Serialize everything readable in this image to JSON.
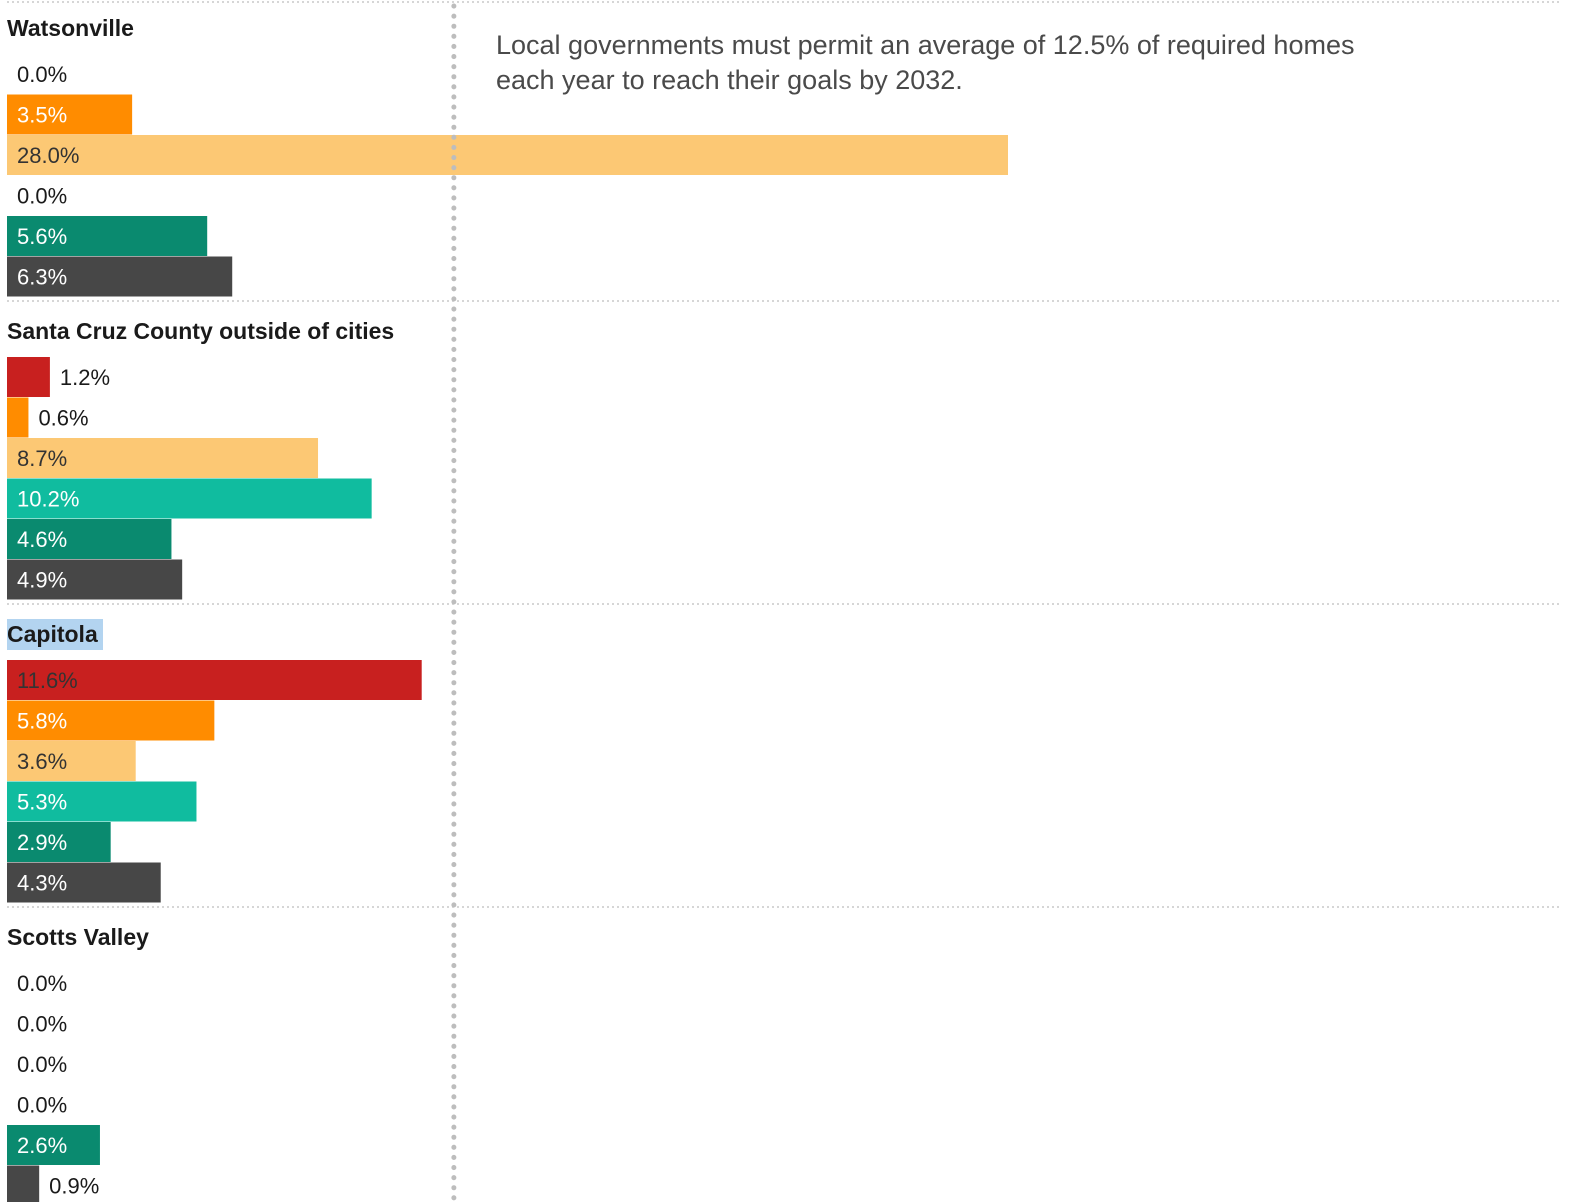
{
  "chart_data": {
    "type": "bar",
    "orientation": "horizontal",
    "xlim": [
      0,
      28
    ],
    "reference_line": {
      "value": 12.5
    },
    "annotation": {
      "lines": [
        "Local governments must permit an average of 12.5% of required homes",
        "each year to reach their goals by 2032."
      ]
    },
    "bar_colors": [
      "#c8201f",
      "#ff8c00",
      "#fcc874",
      "#10bc9f",
      "#0a8a6f",
      "#474747"
    ],
    "highlight_color": "#b3d4f0",
    "groups": [
      {
        "name": "Watsonville",
        "highlighted": false,
        "values": [
          0.0,
          3.5,
          28.0,
          0.0,
          5.6,
          6.3
        ],
        "labels": [
          "0.0%",
          "3.5%",
          "28.0%",
          "0.0%",
          "5.6%",
          "6.3%"
        ]
      },
      {
        "name": "Santa Cruz County outside of cities",
        "highlighted": false,
        "values": [
          1.2,
          0.6,
          8.7,
          10.2,
          4.6,
          4.9
        ],
        "labels": [
          "1.2%",
          "0.6%",
          "8.7%",
          "10.2%",
          "4.6%",
          "4.9%"
        ]
      },
      {
        "name": "Capitola",
        "highlighted": true,
        "values": [
          11.6,
          5.8,
          3.6,
          5.3,
          2.9,
          4.3
        ],
        "labels": [
          "11.6%",
          "5.8%",
          "3.6%",
          "5.3%",
          "2.9%",
          "4.3%"
        ]
      },
      {
        "name": "Scotts Valley",
        "highlighted": false,
        "values": [
          0.0,
          0.0,
          0.0,
          0.0,
          2.6,
          0.9
        ],
        "labels": [
          "0.0%",
          "0.0%",
          "0.0%",
          "0.0%",
          "2.6%",
          "0.9%"
        ]
      }
    ]
  }
}
